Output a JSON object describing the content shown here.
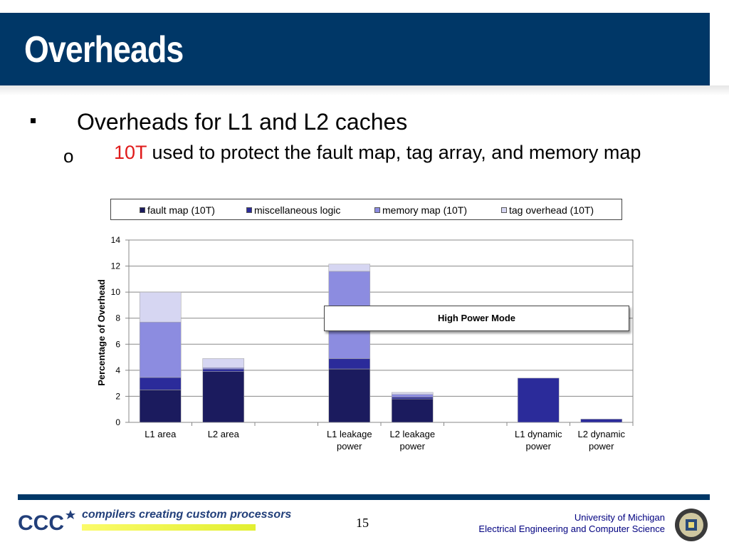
{
  "slide": {
    "title": "Overheads",
    "bullet1": "Overheads for L1 and L2 caches",
    "bullet2_marker": "o",
    "bullet2_highlight": "10T",
    "bullet2_rest": " used to protect the fault map, tag array, and memory map",
    "colors": {
      "title_bar": "#003767",
      "highlight": "#e01a1a"
    }
  },
  "chart_data": {
    "type": "bar",
    "stacked": true,
    "ylabel": "Percentage of Overhead",
    "ylim": [
      0,
      14
    ],
    "yticks": [
      0,
      2,
      4,
      6,
      8,
      10,
      12,
      14
    ],
    "grid": true,
    "legend_position": "top",
    "categories": [
      [
        "L1 area"
      ],
      [
        "L2 area"
      ],
      [],
      [
        "L1 leakage",
        "power"
      ],
      [
        "L2 leakage",
        "power"
      ],
      [],
      [
        "L1 dynamic",
        "power"
      ],
      [
        "L2 dynamic",
        "power"
      ]
    ],
    "series": [
      {
        "name": "fault map (10T)",
        "color": "#1b1b5e",
        "values": [
          2.5,
          3.9,
          0,
          4.1,
          1.8,
          0,
          0,
          0
        ]
      },
      {
        "name": "miscellaneous logic",
        "color": "#2b2b9a",
        "values": [
          0.95,
          0.2,
          0,
          0.8,
          0.15,
          0,
          3.4,
          0.25
        ]
      },
      {
        "name": "memory map (10T)",
        "color": "#8c8ce0",
        "values": [
          4.25,
          0.1,
          0,
          6.7,
          0.2,
          0,
          0,
          0
        ]
      },
      {
        "name": "tag overhead (10T)",
        "color": "#d6d6f2",
        "values": [
          2.3,
          0.7,
          0,
          0.55,
          0.15,
          0,
          0,
          0
        ]
      }
    ],
    "annotation": "High Power Mode"
  },
  "footer": {
    "logo_text": "CCC",
    "tagline": "compilers creating custom processors",
    "page_number": "15",
    "university": "University of Michigan",
    "department": "Electrical Engineering and Computer Science"
  }
}
